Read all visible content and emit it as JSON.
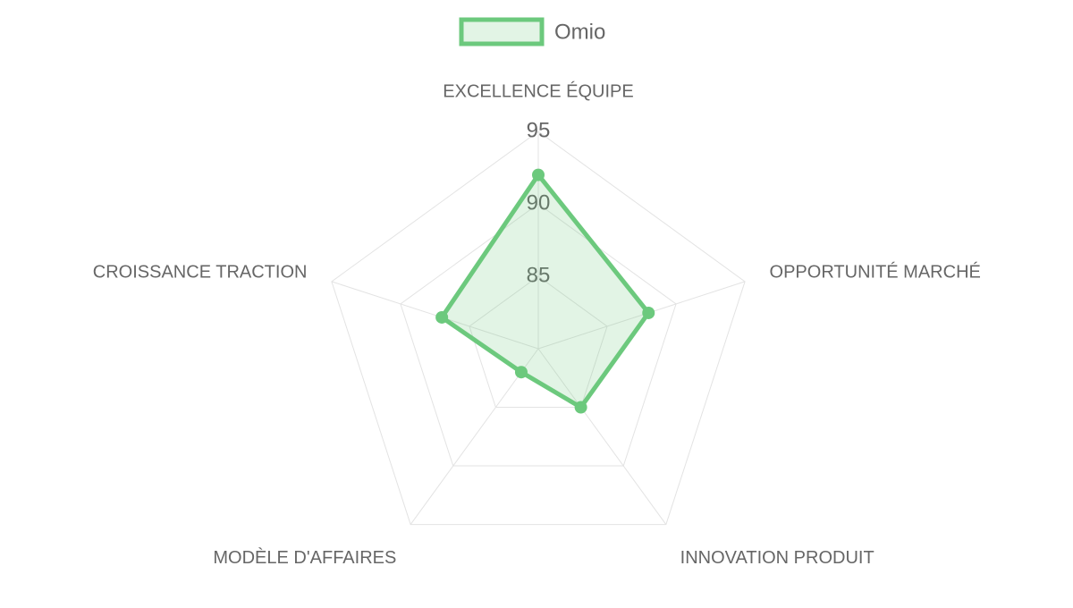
{
  "chart_data": {
    "type": "radar",
    "categories": [
      "EXCELLENCE ÉQUIPE",
      "OPPORTUNITÉ MARCHÉ",
      "INNOVATION PRODUIT",
      "MODÈLE D'AFFAIRES",
      "CROISSANCE TRACTION"
    ],
    "series": [
      {
        "name": "Omio",
        "color": "#6cc97d",
        "values": [
          92,
          88,
          85,
          82,
          87
        ]
      }
    ],
    "rlim": [
      80,
      95
    ],
    "rticks": [
      85,
      90,
      95
    ],
    "grid": true,
    "legend": "top"
  }
}
